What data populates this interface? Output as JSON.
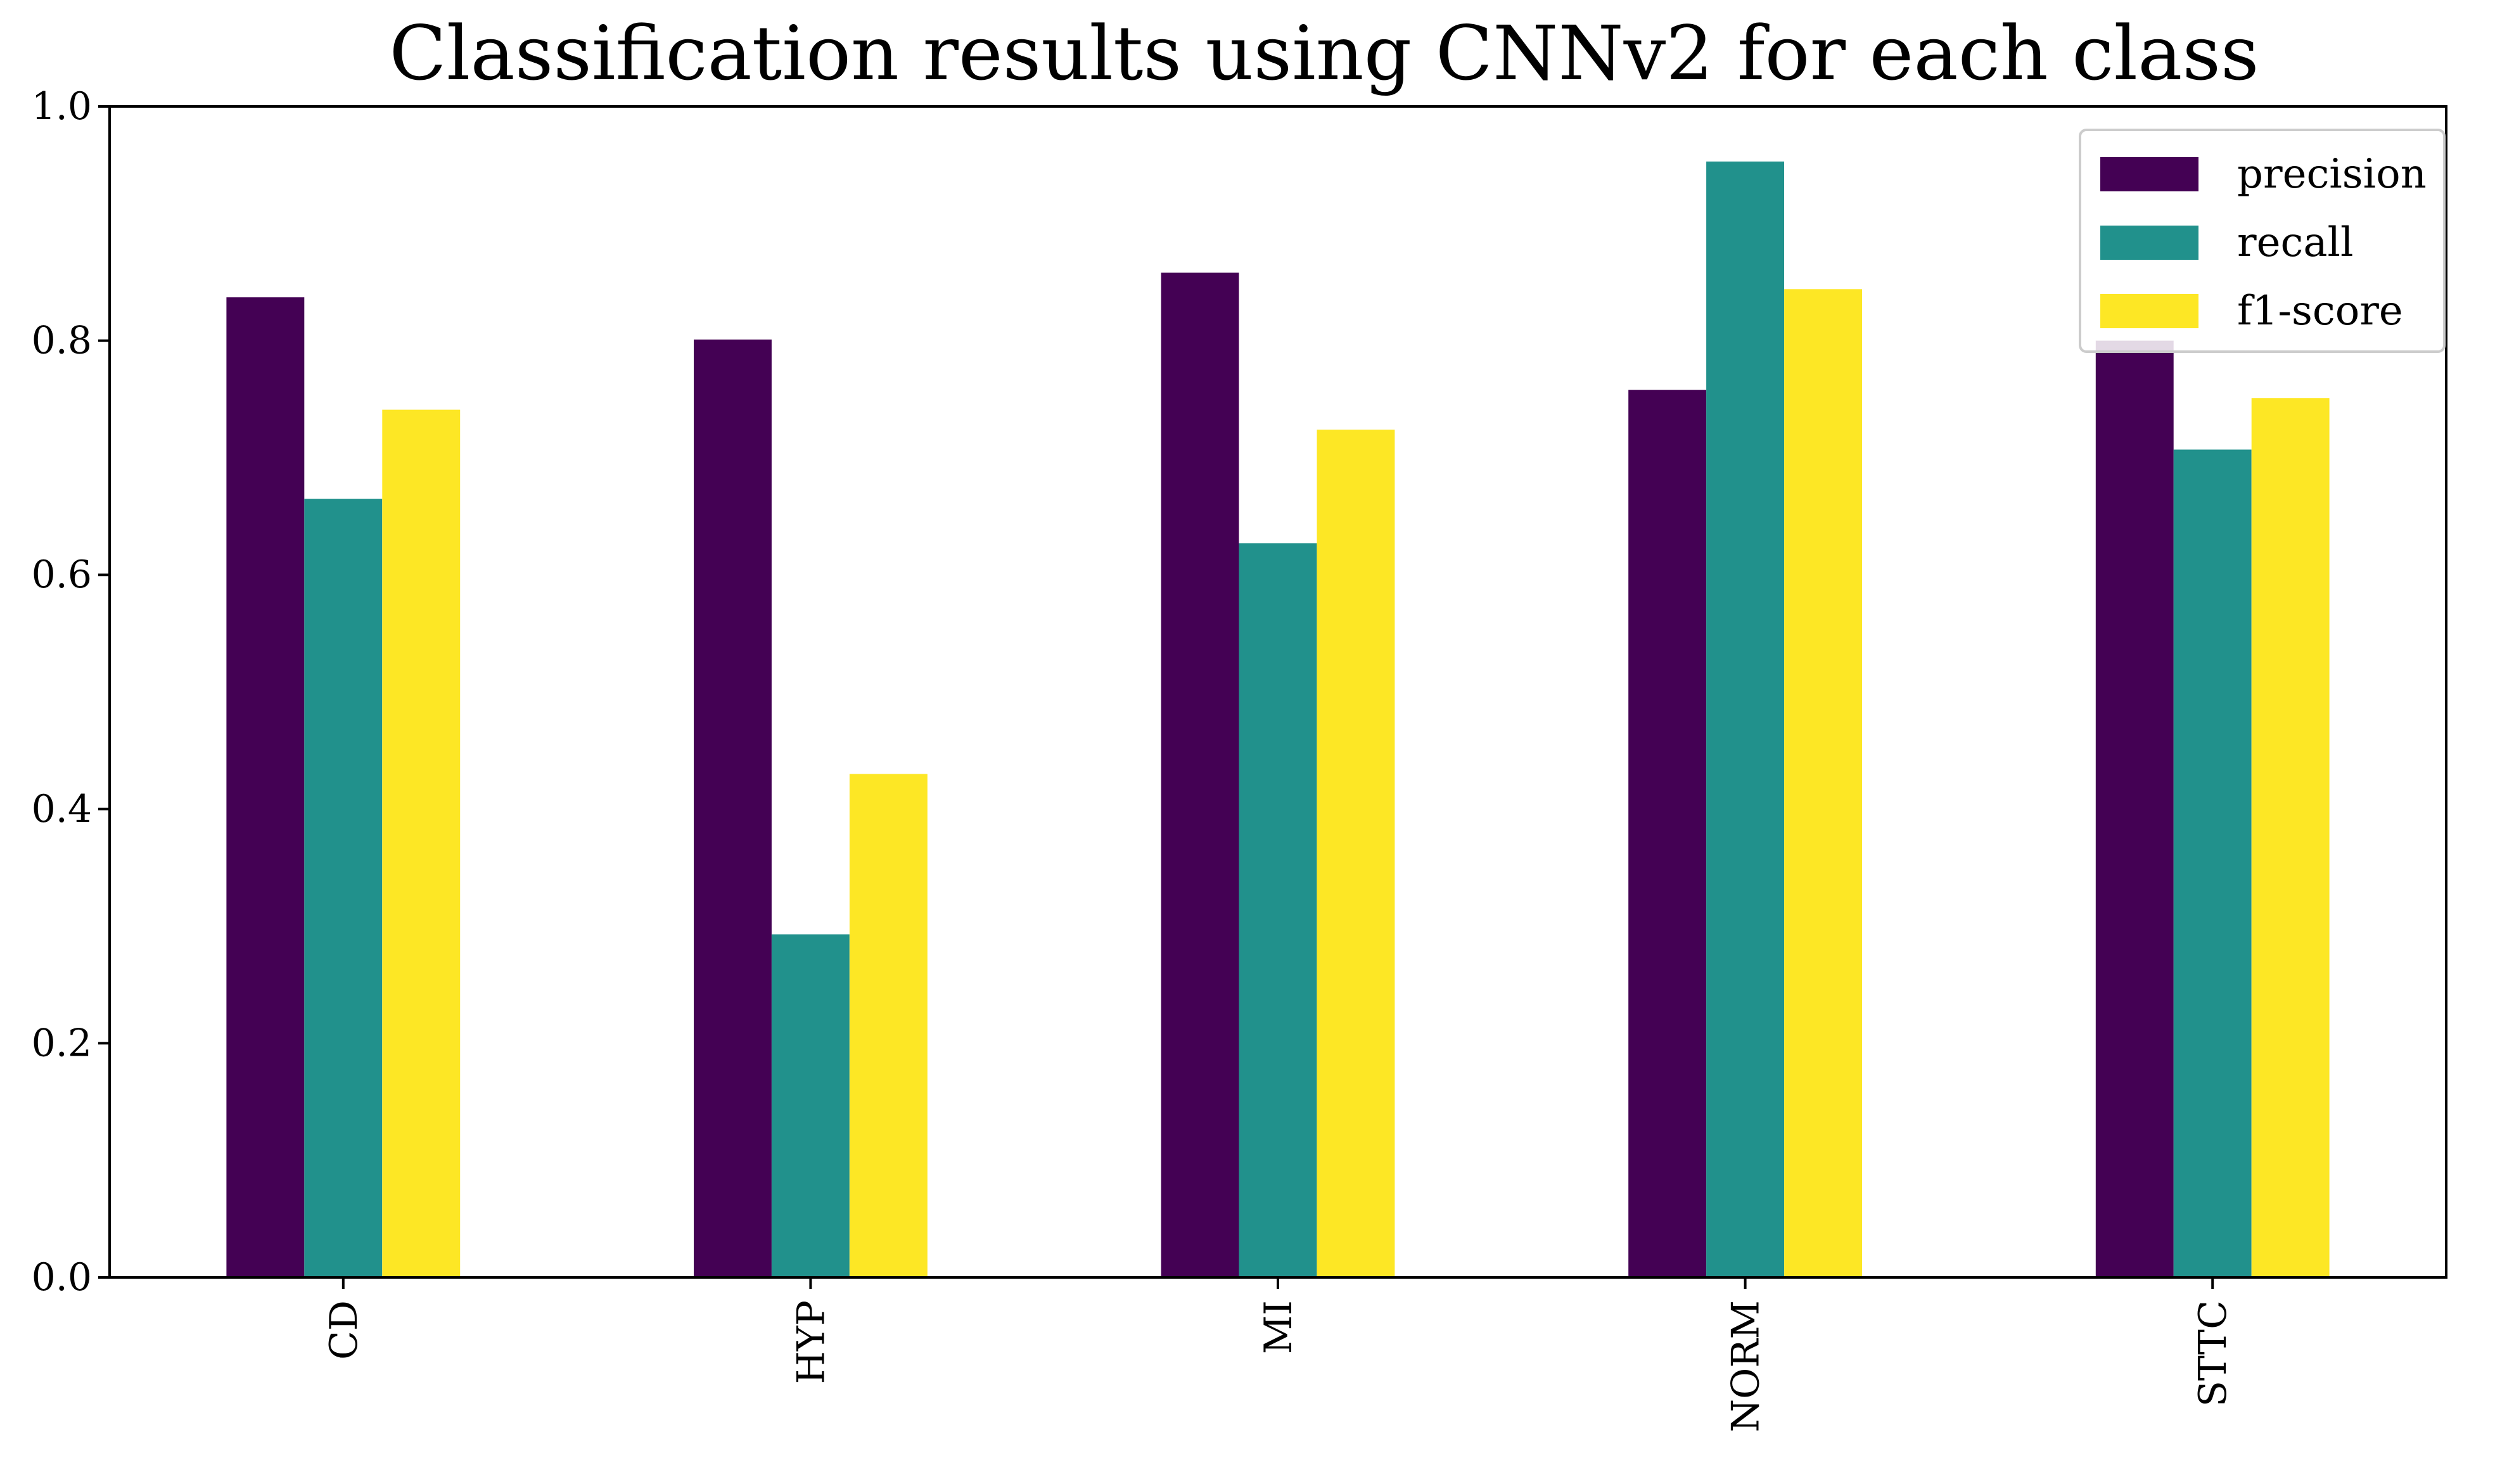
{
  "chart_data": {
    "type": "bar",
    "title": "Classification results using CNNv2 for each class",
    "xlabel": "",
    "ylabel": "",
    "categories": [
      "CD",
      "HYP",
      "MI",
      "NORM",
      "STTC"
    ],
    "series": [
      {
        "name": "precision",
        "color": "#440154",
        "values": [
          0.837,
          0.801,
          0.858,
          0.758,
          0.8
        ]
      },
      {
        "name": "recall",
        "color": "#21918c",
        "values": [
          0.665,
          0.293,
          0.627,
          0.953,
          0.707
        ]
      },
      {
        "name": "f1-score",
        "color": "#fde725",
        "values": [
          0.741,
          0.43,
          0.724,
          0.844,
          0.751
        ]
      }
    ],
    "ylim": [
      0,
      1.0
    ],
    "yticks": [
      "0.0",
      "0.2",
      "0.4",
      "0.6",
      "0.8",
      "1.0"
    ],
    "grid": false,
    "legend_position": "top-right"
  }
}
